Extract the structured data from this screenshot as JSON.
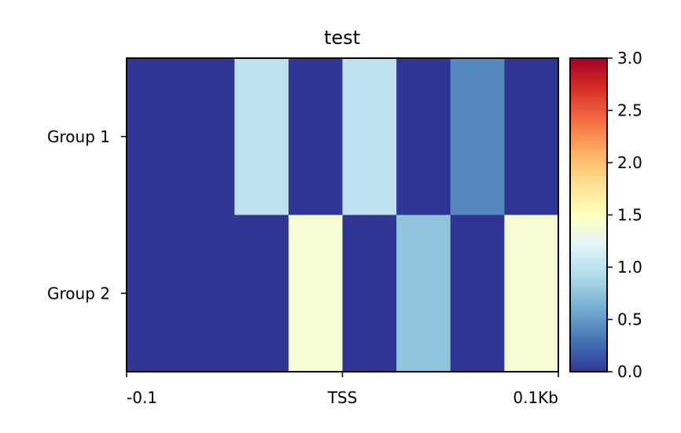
{
  "chart_data": {
    "type": "heatmap",
    "title": "test",
    "rows": [
      "Group 1",
      "Group 2"
    ],
    "x_tick_labels": [
      "-0.1",
      "TSS",
      "0.1Kb"
    ],
    "columns": 8,
    "values": [
      [
        0.0,
        0.0,
        1.0,
        0.0,
        1.0,
        0.0,
        0.4,
        0.0
      ],
      [
        0.0,
        0.0,
        0.0,
        1.4,
        0.0,
        0.75,
        0.0,
        1.4
      ]
    ],
    "colorbar": {
      "colormap": "RdYlBu_r",
      "vmin": 0.0,
      "vmax": 3.0,
      "ticks": [
        "0.0",
        "0.5",
        "1.0",
        "1.5",
        "2.0",
        "2.5",
        "3.0"
      ]
    }
  }
}
